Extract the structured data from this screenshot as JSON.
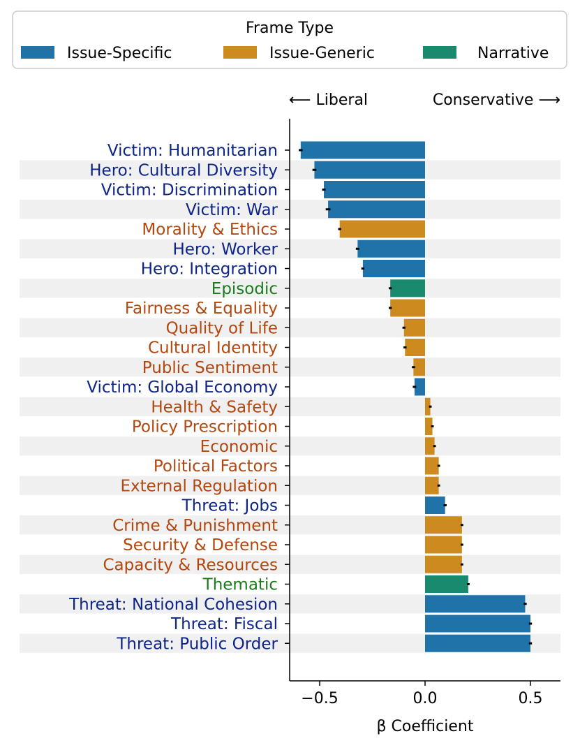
{
  "chart_data": {
    "type": "bar",
    "orientation": "horizontal",
    "legend": {
      "title": "Frame Type",
      "placement": "top-center",
      "entries": [
        {
          "key": "issue_specific",
          "label": "Issue-Specific"
        },
        {
          "key": "issue_generic",
          "label": "Issue-Generic"
        },
        {
          "key": "narrative",
          "label": "Narrative"
        }
      ]
    },
    "direction_labels": {
      "left": "⟵ Liberal",
      "right": "Conservative ⟶"
    },
    "xlabel": "β Coefficient",
    "xlim": [
      -0.64,
      0.64
    ],
    "xticks": [
      {
        "value": -0.5,
        "label": "−0.5"
      },
      {
        "value": 0.0,
        "label": "0.0"
      },
      {
        "value": 0.5,
        "label": "0.5"
      }
    ],
    "colors": {
      "issue_specific": "#1f73a8",
      "issue_generic": "#cc8a1f",
      "narrative": "#1a8a6e",
      "label_issue_specific": "#0d2488",
      "label_issue_generic": "#b3470e",
      "label_narrative": "#1d7a1d",
      "stripe": "#f0f0f0",
      "error": "#000000"
    },
    "bars": [
      {
        "label": "Victim: Humanitarian",
        "type": "issue_specific",
        "value": -0.59,
        "err": 0.006
      },
      {
        "label": "Hero: Cultural Diversity",
        "type": "issue_specific",
        "value": -0.525,
        "err": 0.006
      },
      {
        "label": "Victim: Discrimination",
        "type": "issue_specific",
        "value": -0.48,
        "err": 0.005
      },
      {
        "label": "Victim: War",
        "type": "issue_specific",
        "value": -0.46,
        "err": 0.008
      },
      {
        "label": "Morality & Ethics",
        "type": "issue_generic",
        "value": -0.405,
        "err": 0.004
      },
      {
        "label": "Hero: Worker",
        "type": "issue_specific",
        "value": -0.32,
        "err": 0.005
      },
      {
        "label": "Hero: Integration",
        "type": "issue_specific",
        "value": -0.295,
        "err": 0.004
      },
      {
        "label": "Episodic",
        "type": "narrative",
        "value": -0.165,
        "err": 0.004
      },
      {
        "label": "Fairness & Equality",
        "type": "issue_generic",
        "value": -0.165,
        "err": 0.004
      },
      {
        "label": "Quality of Life",
        "type": "issue_generic",
        "value": -0.1,
        "err": 0.004
      },
      {
        "label": "Cultural Identity",
        "type": "issue_generic",
        "value": -0.095,
        "err": 0.004
      },
      {
        "label": "Public Sentiment",
        "type": "issue_generic",
        "value": -0.055,
        "err": 0.004
      },
      {
        "label": "Victim: Global Economy",
        "type": "issue_specific",
        "value": -0.05,
        "err": 0.005
      },
      {
        "label": "Health & Safety",
        "type": "issue_generic",
        "value": 0.025,
        "err": 0.003
      },
      {
        "label": "Policy Prescription",
        "type": "issue_generic",
        "value": 0.035,
        "err": 0.003
      },
      {
        "label": "Economic",
        "type": "issue_generic",
        "value": 0.045,
        "err": 0.003
      },
      {
        "label": "Political Factors",
        "type": "issue_generic",
        "value": 0.065,
        "err": 0.003
      },
      {
        "label": "External Regulation",
        "type": "issue_generic",
        "value": 0.065,
        "err": 0.003
      },
      {
        "label": "Threat: Jobs",
        "type": "issue_specific",
        "value": 0.095,
        "err": 0.004
      },
      {
        "label": "Crime & Punishment",
        "type": "issue_generic",
        "value": 0.175,
        "err": 0.003
      },
      {
        "label": "Security & Defense",
        "type": "issue_generic",
        "value": 0.175,
        "err": 0.003
      },
      {
        "label": "Capacity & Resources",
        "type": "issue_generic",
        "value": 0.175,
        "err": 0.003
      },
      {
        "label": "Thematic",
        "type": "narrative",
        "value": 0.205,
        "err": 0.003
      },
      {
        "label": "Threat: National Cohesion",
        "type": "issue_specific",
        "value": 0.475,
        "err": 0.004
      },
      {
        "label": "Threat: Fiscal",
        "type": "issue_specific",
        "value": 0.5,
        "err": 0.004
      },
      {
        "label": "Threat: Public Order",
        "type": "issue_specific",
        "value": 0.5,
        "err": 0.004
      }
    ]
  }
}
